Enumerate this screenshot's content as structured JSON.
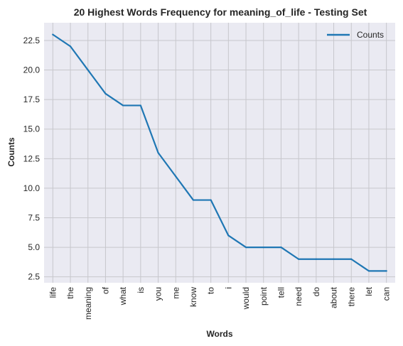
{
  "colors": {
    "plot_background": "#eaeaf2",
    "grid": "#c7c7cc",
    "line": "#1f77b4",
    "text": "#262626"
  },
  "chart_data": {
    "type": "line",
    "title": "20 Highest Words Frequency for meaning_of_life - Testing Set",
    "xlabel": "Words",
    "ylabel": "Counts",
    "categories": [
      "life",
      "the",
      "meaning",
      "of",
      "what",
      "is",
      "you",
      "me",
      "know",
      "to",
      "i",
      "would",
      "point",
      "tell",
      "need",
      "do",
      "about",
      "there",
      "let",
      "can"
    ],
    "series": [
      {
        "name": "Counts",
        "values": [
          23,
          22,
          20,
          18,
          17,
          17,
          13,
          11,
          9,
          9,
          6,
          5,
          5,
          5,
          4,
          4,
          4,
          4,
          3,
          3
        ]
      }
    ],
    "yticks": [
      2.5,
      5.0,
      7.5,
      10.0,
      12.5,
      15.0,
      17.5,
      20.0,
      22.5
    ],
    "ytick_labels": [
      "2.5",
      "5.0",
      "7.5",
      "10.0",
      "12.5",
      "15.0",
      "17.5",
      "20.0",
      "22.5"
    ],
    "ylim": [
      2.0,
      24.0
    ],
    "grid": true,
    "legend_position": "top-right"
  }
}
